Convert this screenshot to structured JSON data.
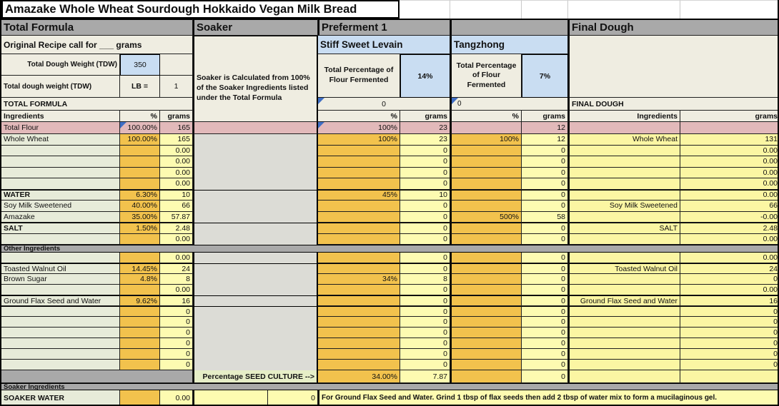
{
  "title": "Amazake Whole Wheat Sourdough Hokkaido Vegan Milk Bread",
  "colors": {
    "section_gray": "#a9a9a9",
    "pct_orange": "#f2c24d",
    "grams_yellow": "#fdfbb1",
    "final_yellow": "#fbf6a3",
    "label_green": "#e7ebd9",
    "total_flour_pink": "#e2b9ba",
    "input_blue": "#c9ddf2",
    "header_beige": "#efede1",
    "soaker_gray": "#dcdcd6",
    "seed_green": "#e6eec7",
    "comment_indicator_blue": "#3f6ec4"
  },
  "headers": {
    "total_formula": "Total Formula",
    "soaker": "Soaker",
    "preferment1": "Preferment 1",
    "final_dough": "Final Dough"
  },
  "left": {
    "original_recipe": "Original Recipe call for ___ grams",
    "tdw_label": "Total Dough Weight (TDW)",
    "tdw_value": "350",
    "tdw2_label": "Total dough weight (TDW)",
    "lb_label": "LB =",
    "lb_value": "1",
    "table_title": "TOTAL FORMULA",
    "col_ingredients": "Ingredients",
    "col_pct": "%",
    "col_grams": "grams"
  },
  "soaker": {
    "note": "Soaker is Calculated from 100% of the Soaker Ingredients listed under the Total Formula",
    "seed_label": "Percentage SEED CULTURE  -->"
  },
  "levain": {
    "name": "Stiff Sweet Levain",
    "ferment_label": "Total Percentage of Flour Fermented",
    "ferment_pct": "14%",
    "indicator": "0",
    "col_pct": "%",
    "col_grams": "grams",
    "seed_pct": "34.00%",
    "seed_grams": "7.87"
  },
  "tangzhong": {
    "name": "Tangzhong",
    "ferment_label": "Total Percentage of Flour Fermented",
    "ferment_pct": "7%",
    "indicator": "0",
    "col_pct": "%",
    "col_grams": "grams",
    "seed_pct": "",
    "seed_grams": "0"
  },
  "final": {
    "table_title": "FINAL DOUGH",
    "col_ingredients": "Ingredients",
    "col_grams": "grams"
  },
  "total_flour_row": {
    "label": "Total Flour",
    "pct": "100.00%",
    "grams": "165",
    "p1_pct": "100%",
    "p1_grams": "23",
    "t_pct": "",
    "t_grams": "12",
    "f_label": "",
    "f_grams": ""
  },
  "bands": {
    "other_ingredients": "Other Ingredients",
    "soaker_ingredients": "Soaker Ingredients"
  },
  "rows_main": [
    {
      "l": "Whole Wheat",
      "lp": "100.00%",
      "lg": "165",
      "p1p": "100%",
      "p1g": "23",
      "tp": "100%",
      "tg": "12",
      "fl": "Whole Wheat",
      "fg": "131",
      "bold": false,
      "thick": false
    },
    {
      "l": "",
      "lp": "",
      "lg": "0.00",
      "p1p": "",
      "p1g": "0",
      "tp": "",
      "tg": "0",
      "fl": "",
      "fg": "0.00",
      "bold": false,
      "thick": false
    },
    {
      "l": "",
      "lp": "",
      "lg": "0.00",
      "p1p": "",
      "p1g": "0",
      "tp": "",
      "tg": "0",
      "fl": "",
      "fg": "0.00",
      "bold": false,
      "thick": false
    },
    {
      "l": "",
      "lp": "",
      "lg": "0.00",
      "p1p": "",
      "p1g": "0",
      "tp": "",
      "tg": "0",
      "fl": "",
      "fg": "0.00",
      "bold": false,
      "thick": false
    },
    {
      "l": "",
      "lp": "",
      "lg": "0.00",
      "p1p": "",
      "p1g": "0",
      "tp": "",
      "tg": "0",
      "fl": "",
      "fg": "0.00",
      "bold": false,
      "thick": false
    },
    {
      "l": "WATER",
      "lp": "6.30%",
      "lg": "10",
      "p1p": "45%",
      "p1g": "10",
      "tp": "",
      "tg": "0",
      "fl": "",
      "fg": "0.00",
      "bold": true,
      "thick": true
    },
    {
      "l": "Soy Milk Sweetened",
      "lp": "40.00%",
      "lg": "66",
      "p1p": "",
      "p1g": "0",
      "tp": "",
      "tg": "0",
      "fl": "Soy Milk Sweetened",
      "fg": "66",
      "bold": false,
      "thick": false
    },
    {
      "l": "Amazake",
      "lp": "35.00%",
      "lg": "57.87",
      "p1p": "",
      "p1g": "0",
      "tp": "500%",
      "tg": "58",
      "fl": "",
      "fg": "-0.00",
      "bold": false,
      "thick": false
    },
    {
      "l": "SALT",
      "lp": "1.50%",
      "lg": "2.48",
      "p1p": "",
      "p1g": "0",
      "tp": "",
      "tg": "0",
      "fl": "SALT",
      "fg": "2.48",
      "bold": true,
      "thick": true
    },
    {
      "l": "",
      "lp": "",
      "lg": "0.00",
      "p1p": "",
      "p1g": "0",
      "tp": "",
      "tg": "0",
      "fl": "",
      "fg": "0.00",
      "bold": false,
      "thick": false
    }
  ],
  "rows_other": [
    {
      "l": "",
      "lp": "",
      "lg": "0.00",
      "p1p": "",
      "p1g": "0",
      "tp": "",
      "tg": "0",
      "fl": "",
      "fg": "0.00",
      "bold": false,
      "thick": false
    },
    {
      "l": "Toasted Walnut Oil",
      "lp": "14.45%",
      "lg": "24",
      "p1p": "",
      "p1g": "0",
      "tp": "",
      "tg": "0",
      "fl": "Toasted Walnut Oil",
      "fg": "24",
      "bold": false,
      "thick": true
    },
    {
      "l": "Brown Sugar",
      "lp": "4.8%",
      "lg": "8",
      "p1p": "34%",
      "p1g": "8",
      "tp": "",
      "tg": "0",
      "fl": "",
      "fg": "0",
      "bold": false,
      "thick": false
    },
    {
      "l": "",
      "lp": "",
      "lg": "0.00",
      "p1p": "",
      "p1g": "0",
      "tp": "",
      "tg": "0",
      "fl": "",
      "fg": "0.00",
      "bold": false,
      "thick": false
    },
    {
      "l": "Ground Flax Seed and Water",
      "lp": "9.62%",
      "lg": "16",
      "p1p": "",
      "p1g": "0",
      "tp": "",
      "tg": "0",
      "fl": "Ground Flax Seed and Water",
      "fg": "16",
      "bold": false,
      "thick": true
    },
    {
      "l": "",
      "lp": "",
      "lg": "0",
      "p1p": "",
      "p1g": "0",
      "tp": "",
      "tg": "0",
      "fl": "",
      "fg": "0",
      "bold": false,
      "thick": true
    },
    {
      "l": "",
      "lp": "",
      "lg": "0",
      "p1p": "",
      "p1g": "0",
      "tp": "",
      "tg": "0",
      "fl": "",
      "fg": "0",
      "bold": false,
      "thick": false
    },
    {
      "l": "",
      "lp": "",
      "lg": "0",
      "p1p": "",
      "p1g": "0",
      "tp": "",
      "tg": "0",
      "fl": "",
      "fg": "0",
      "bold": false,
      "thick": false
    },
    {
      "l": "",
      "lp": "",
      "lg": "0",
      "p1p": "",
      "p1g": "0",
      "tp": "",
      "tg": "0",
      "fl": "",
      "fg": "0",
      "bold": false,
      "thick": false
    },
    {
      "l": "",
      "lp": "",
      "lg": "0",
      "p1p": "",
      "p1g": "0",
      "tp": "",
      "tg": "0",
      "fl": "",
      "fg": "0",
      "bold": false,
      "thick": false
    },
    {
      "l": "",
      "lp": "",
      "lg": "0",
      "p1p": "",
      "p1g": "0",
      "tp": "",
      "tg": "0",
      "fl": "",
      "fg": "0",
      "bold": false,
      "thick": false
    }
  ],
  "soaker_water_row": {
    "label": "SOAKER WATER",
    "pct": "",
    "grams": "0.00",
    "soak_a": "",
    "soak_b": "0"
  },
  "flax_note": "For Ground Flax Seed and Water.  Grind 1 tbsp of flax seeds then add 2 tbsp of water mix to form a mucilaginous gel."
}
